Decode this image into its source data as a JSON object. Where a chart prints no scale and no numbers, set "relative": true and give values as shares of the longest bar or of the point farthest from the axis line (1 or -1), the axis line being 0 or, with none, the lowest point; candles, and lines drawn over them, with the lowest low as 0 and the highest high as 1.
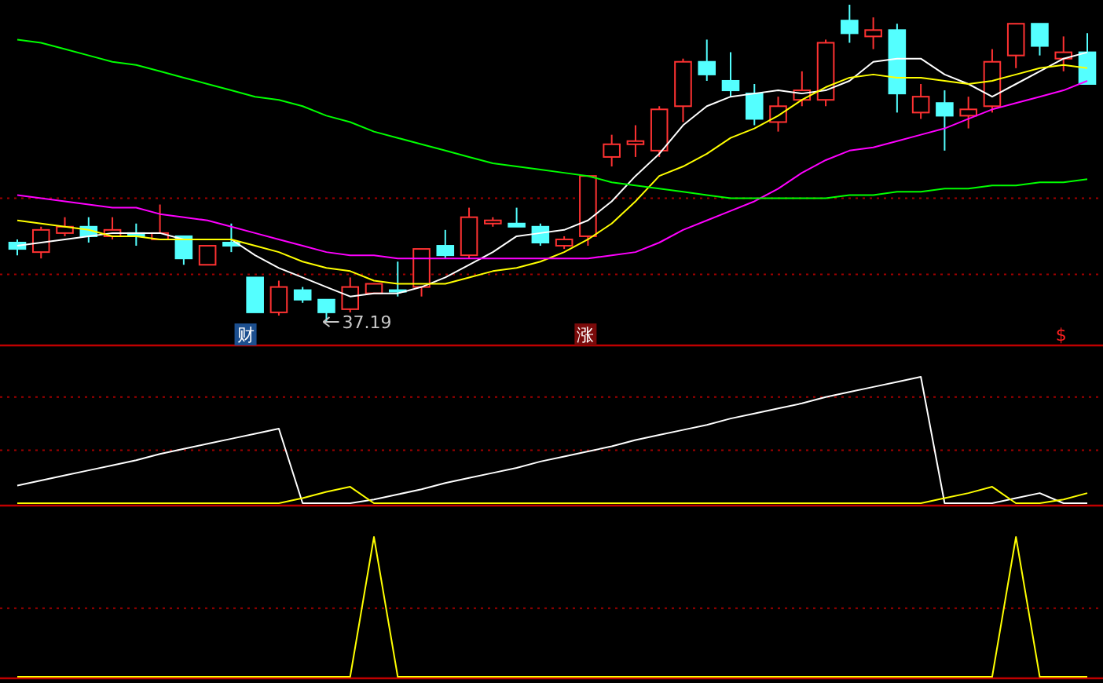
{
  "chart_data": [
    {
      "type": "candlestick",
      "relative": true,
      "ref_lines": [
        {
          "axis": "y",
          "value": 0.39,
          "color": "#a00000",
          "line_style": "dotted"
        },
        {
          "axis": "y",
          "value": 0.15,
          "color": "#a00000",
          "line_style": "dotted"
        }
      ],
      "categories": [
        null,
        null,
        null,
        null,
        null,
        null,
        null,
        null,
        null,
        null,
        null,
        null,
        null,
        null,
        null,
        null,
        null,
        null,
        null,
        null,
        null,
        null,
        null,
        null,
        null,
        null,
        null,
        null,
        null,
        null,
        null,
        null,
        null,
        null,
        null,
        null,
        null,
        null,
        null,
        null,
        null,
        null,
        null,
        null,
        null,
        null
      ],
      "ohlc": [
        [
          0.25,
          0.26,
          0.21,
          0.23
        ],
        [
          0.22,
          0.3,
          0.2,
          0.29
        ],
        [
          0.28,
          0.33,
          0.27,
          0.3
        ],
        [
          0.3,
          0.33,
          0.25,
          0.27
        ],
        [
          0.27,
          0.33,
          0.26,
          0.29
        ],
        [
          0.28,
          0.31,
          0.24,
          0.27
        ],
        [
          0.26,
          0.37,
          0.26,
          0.28
        ],
        [
          0.27,
          0.27,
          0.18,
          0.2
        ],
        [
          0.18,
          0.24,
          0.18,
          0.24
        ],
        [
          0.25,
          0.31,
          0.22,
          0.24
        ],
        [
          0.14,
          0.14,
          0.03,
          0.03
        ],
        [
          0.03,
          0.13,
          0.02,
          0.11
        ],
        [
          0.1,
          0.11,
          0.06,
          0.07
        ],
        [
          0.07,
          0.07,
          0,
          0.03
        ],
        [
          0.04,
          0.14,
          0.03,
          0.11
        ],
        [
          0.09,
          0.12,
          0.09,
          0.12
        ],
        [
          0.1,
          0.19,
          0.08,
          0.1
        ],
        [
          0.11,
          0.23,
          0.08,
          0.23
        ],
        [
          0.24,
          0.29,
          0.2,
          0.21
        ],
        [
          0.21,
          0.36,
          0.2,
          0.33
        ],
        [
          0.31,
          0.33,
          0.3,
          0.32
        ],
        [
          0.31,
          0.36,
          0.3,
          0.3
        ],
        [
          0.3,
          0.31,
          0.24,
          0.25
        ],
        [
          0.24,
          0.27,
          0.23,
          0.26
        ],
        [
          0.27,
          0.46,
          0.24,
          0.46
        ],
        [
          0.52,
          0.59,
          0.49,
          0.56
        ],
        [
          0.56,
          0.62,
          0.52,
          0.57
        ],
        [
          0.54,
          0.68,
          0.52,
          0.67
        ],
        [
          0.68,
          0.83,
          0.63,
          0.82
        ],
        [
          0.82,
          0.89,
          0.76,
          0.78
        ],
        [
          0.76,
          0.85,
          0.71,
          0.73
        ],
        [
          0.72,
          0.75,
          0.62,
          0.64
        ],
        [
          0.63,
          0.71,
          0.6,
          0.68
        ],
        [
          0.7,
          0.79,
          0.68,
          0.73
        ],
        [
          0.7,
          0.89,
          0.68,
          0.88
        ],
        [
          0.95,
          1,
          0.88,
          0.91
        ],
        [
          0.9,
          0.96,
          0.86,
          0.92
        ],
        [
          0.92,
          0.94,
          0.66,
          0.72
        ],
        [
          0.66,
          0.75,
          0.64,
          0.71
        ],
        [
          0.69,
          0.73,
          0.54,
          0.65
        ],
        [
          0.65,
          0.71,
          0.61,
          0.67
        ],
        [
          0.68,
          0.86,
          0.66,
          0.82
        ],
        [
          0.84,
          0.94,
          0.8,
          0.94
        ],
        [
          0.94,
          0.94,
          0.84,
          0.87
        ],
        [
          0.83,
          0.9,
          0.79,
          0.85
        ],
        [
          0.85,
          0.91,
          0.75,
          0.75
        ]
      ],
      "colors": [
        "#54ffff",
        "#ff3232",
        "#ff3232",
        "#54ffff",
        "#ff3232",
        "#54ffff",
        "#ff3232",
        "#54ffff",
        "#ff3232",
        "#54ffff",
        "#54ffff",
        "#ff3232",
        "#54ffff",
        "#54ffff",
        "#ff3232",
        "#ff3232",
        "#54ffff",
        "#ff3232",
        "#54ffff",
        "#ff3232",
        "#ff3232",
        "#54ffff",
        "#54ffff",
        "#ff3232",
        "#ff3232",
        "#ff3232",
        "#ff3232",
        "#ff3232",
        "#ff3232",
        "#54ffff",
        "#54ffff",
        "#54ffff",
        "#ff3232",
        "#ff3232",
        "#ff3232",
        "#54ffff",
        "#ff3232",
        "#54ffff",
        "#ff3232",
        "#54ffff",
        "#ff3232",
        "#ff3232",
        "#ff3232",
        "#54ffff",
        "#ff3232",
        "#54ffff"
      ],
      "series": [
        {
          "type": "line",
          "color": "#ffffff",
          "values": [
            0.24,
            0.25,
            0.26,
            0.27,
            0.28,
            0.28,
            0.28,
            0.26,
            0.26,
            0.26,
            0.21,
            0.17,
            0.14,
            0.11,
            0.08,
            0.09,
            0.09,
            0.11,
            0.14,
            0.18,
            0.22,
            0.27,
            0.28,
            0.29,
            0.32,
            0.38,
            0.46,
            0.53,
            0.62,
            0.68,
            0.71,
            0.72,
            0.73,
            0.72,
            0.73,
            0.76,
            0.82,
            0.83,
            0.83,
            0.78,
            0.75,
            0.71,
            0.75,
            0.79,
            0.83,
            0.85
          ]
        },
        {
          "type": "line",
          "color": "#ffff00",
          "values": [
            0.32,
            0.31,
            0.3,
            0.29,
            0.27,
            0.27,
            0.26,
            0.26,
            0.26,
            0.26,
            0.24,
            0.22,
            0.19,
            0.17,
            0.16,
            0.13,
            0.12,
            0.12,
            0.12,
            0.14,
            0.16,
            0.17,
            0.19,
            0.22,
            0.26,
            0.31,
            0.38,
            0.46,
            0.49,
            0.53,
            0.58,
            0.61,
            0.65,
            0.7,
            0.74,
            0.77,
            0.78,
            0.77,
            0.77,
            0.76,
            0.75,
            0.76,
            0.78,
            0.8,
            0.81,
            0.8
          ]
        },
        {
          "type": "line",
          "color": "#ff00ff",
          "values": [
            0.4,
            0.39,
            0.38,
            0.37,
            0.36,
            0.36,
            0.34,
            0.33,
            0.32,
            0.3,
            0.28,
            0.26,
            0.24,
            0.22,
            0.21,
            0.21,
            0.2,
            0.2,
            0.2,
            0.2,
            0.2,
            0.2,
            0.2,
            0.2,
            0.2,
            0.21,
            0.22,
            0.25,
            0.29,
            0.32,
            0.35,
            0.38,
            0.42,
            0.47,
            0.51,
            0.54,
            0.55,
            0.57,
            0.59,
            0.61,
            0.64,
            0.67,
            0.69,
            0.71,
            0.73,
            0.76
          ]
        },
        {
          "type": "line",
          "color": "#00ff00",
          "values": [
            0.89,
            0.88,
            0.86,
            0.84,
            0.82,
            0.81,
            0.79,
            0.77,
            0.75,
            0.73,
            0.71,
            0.7,
            0.68,
            0.65,
            0.63,
            0.6,
            0.58,
            0.56,
            0.54,
            0.52,
            0.5,
            0.49,
            0.48,
            0.47,
            0.46,
            0.44,
            0.43,
            0.42,
            0.41,
            0.4,
            0.39,
            0.39,
            0.39,
            0.39,
            0.39,
            0.4,
            0.4,
            0.41,
            0.41,
            0.42,
            0.42,
            0.43,
            0.43,
            0.44,
            0.44,
            0.45
          ]
        }
      ],
      "annotations": [
        "财",
        "37.19",
        "涨",
        "$"
      ]
    },
    {
      "type": "line",
      "relative": true,
      "ref_lines": [
        {
          "axis": "y",
          "value": 0.84,
          "color": "#a00000",
          "line_style": "dotted"
        },
        {
          "axis": "y",
          "value": 0.42,
          "color": "#a00000",
          "line_style": "dotted"
        }
      ],
      "categories": [
        null,
        null,
        null,
        null,
        null,
        null,
        null,
        null,
        null,
        null,
        null,
        null,
        null,
        null,
        null,
        null,
        null,
        null,
        null,
        null,
        null,
        null,
        null,
        null,
        null,
        null,
        null,
        null,
        null,
        null,
        null,
        null,
        null,
        null,
        null,
        null,
        null,
        null,
        null,
        null,
        null,
        null,
        null,
        null,
        null,
        null
      ],
      "series": [
        {
          "color": "#ffffff",
          "values": [
            0.14,
            0.18,
            0.22,
            0.26,
            0.3,
            0.34,
            0.39,
            0.43,
            0.47,
            0.51,
            0.55,
            0.59,
            0,
            0,
            0,
            0.03,
            0.07,
            0.11,
            0.16,
            0.2,
            0.24,
            0.28,
            0.33,
            0.37,
            0.41,
            0.45,
            0.5,
            0.54,
            0.58,
            0.62,
            0.67,
            0.71,
            0.75,
            0.79,
            0.84,
            0.88,
            0.92,
            0.96,
            1,
            0,
            0,
            0,
            0.04,
            0.08,
            0,
            0
          ]
        },
        {
          "color": "#ffff00",
          "values": [
            0,
            0,
            0,
            0,
            0,
            0,
            0,
            0,
            0,
            0,
            0,
            0,
            0.04,
            0.09,
            0.13,
            0,
            0,
            0,
            0,
            0,
            0,
            0,
            0,
            0,
            0,
            0,
            0,
            0,
            0,
            0,
            0,
            0,
            0,
            0,
            0,
            0,
            0,
            0,
            0,
            0.04,
            0.08,
            0.13,
            0,
            0,
            0.03,
            0.08
          ]
        }
      ]
    },
    {
      "type": "line",
      "relative": true,
      "ref_lines": [
        {
          "axis": "y",
          "value": 0.49,
          "color": "#a00000",
          "line_style": "dotted"
        }
      ],
      "categories": [
        null,
        null,
        null,
        null,
        null,
        null,
        null,
        null,
        null,
        null,
        null,
        null,
        null,
        null,
        null,
        null,
        null,
        null,
        null,
        null,
        null,
        null,
        null,
        null,
        null,
        null,
        null,
        null,
        null,
        null,
        null,
        null,
        null,
        null,
        null,
        null,
        null,
        null,
        null,
        null,
        null,
        null,
        null,
        null,
        null,
        null
      ],
      "series": [
        {
          "color": "#ffff00",
          "values": [
            0,
            0,
            0,
            0,
            0,
            0,
            0,
            0,
            0,
            0,
            0,
            0,
            0,
            0,
            0,
            1,
            0,
            0,
            0,
            0,
            0,
            0,
            0,
            0,
            0,
            0,
            0,
            0,
            0,
            0,
            0,
            0,
            0,
            0,
            0,
            0,
            0,
            0,
            0,
            0,
            0,
            0,
            1,
            0,
            0,
            0
          ]
        }
      ]
    }
  ]
}
